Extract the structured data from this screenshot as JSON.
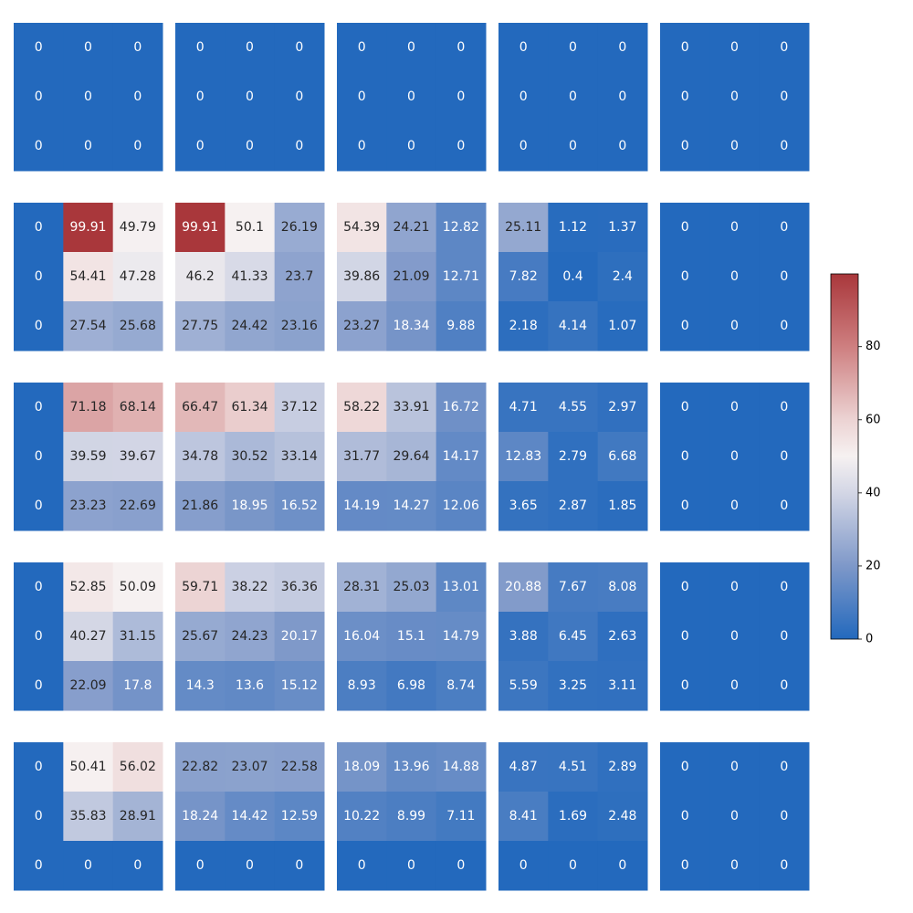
{
  "chart_data": {
    "type": "heatmap",
    "title": "",
    "xlabel": "",
    "ylabel": "",
    "grid_rows": 5,
    "grid_cols": 5,
    "colormap": {
      "name": "vlag",
      "vmin": 0,
      "vmax": 99.91,
      "stops": [
        {
          "v": 0,
          "color": "#2369bd"
        },
        {
          "v": 20,
          "color": "#7e98c9"
        },
        {
          "v": 40,
          "color": "#d3d6e5"
        },
        {
          "v": 50,
          "color": "#f6f1f1"
        },
        {
          "v": 60,
          "color": "#ecd3d3"
        },
        {
          "v": 80,
          "color": "#ce7f80"
        },
        {
          "v": 99.91,
          "color": "#a9373b"
        }
      ]
    },
    "colorbar": {
      "ticks": [
        0,
        20,
        40,
        60,
        80
      ],
      "tick_labels": [
        "0",
        "20",
        "40",
        "60",
        "80"
      ]
    },
    "panels": [
      [
        [
          [
            0,
            0,
            0
          ],
          [
            0,
            0,
            0
          ],
          [
            0,
            0,
            0
          ]
        ],
        [
          [
            0,
            0,
            0
          ],
          [
            0,
            0,
            0
          ],
          [
            0,
            0,
            0
          ]
        ],
        [
          [
            0,
            0,
            0
          ],
          [
            0,
            0,
            0
          ],
          [
            0,
            0,
            0
          ]
        ],
        [
          [
            0,
            0,
            0
          ],
          [
            0,
            0,
            0
          ],
          [
            0,
            0,
            0
          ]
        ],
        [
          [
            0,
            0,
            0
          ],
          [
            0,
            0,
            0
          ],
          [
            0,
            0,
            0
          ]
        ]
      ],
      [
        [
          [
            0,
            99.91,
            49.79
          ],
          [
            0,
            54.41,
            47.28
          ],
          [
            0,
            27.54,
            25.68
          ]
        ],
        [
          [
            99.91,
            50.1,
            26.19
          ],
          [
            46.2,
            41.33,
            23.7
          ],
          [
            27.75,
            24.42,
            23.16
          ]
        ],
        [
          [
            54.39,
            24.21,
            12.82
          ],
          [
            39.86,
            21.09,
            12.71
          ],
          [
            23.27,
            18.34,
            9.88
          ]
        ],
        [
          [
            25.11,
            1.12,
            1.37
          ],
          [
            7.82,
            0.4,
            2.4
          ],
          [
            2.18,
            4.14,
            1.07
          ]
        ],
        [
          [
            0,
            0,
            0
          ],
          [
            0,
            0,
            0
          ],
          [
            0,
            0,
            0
          ]
        ]
      ],
      [
        [
          [
            0,
            71.18,
            68.14
          ],
          [
            0,
            39.59,
            39.67
          ],
          [
            0,
            23.23,
            22.69
          ]
        ],
        [
          [
            66.47,
            61.34,
            37.12
          ],
          [
            34.78,
            30.52,
            33.14
          ],
          [
            21.86,
            18.95,
            16.52
          ]
        ],
        [
          [
            58.22,
            33.91,
            16.72
          ],
          [
            31.77,
            29.64,
            14.17
          ],
          [
            14.19,
            14.27,
            12.06
          ]
        ],
        [
          [
            4.71,
            4.55,
            2.97
          ],
          [
            12.83,
            2.79,
            6.68
          ],
          [
            3.65,
            2.87,
            1.85
          ]
        ],
        [
          [
            0,
            0,
            0
          ],
          [
            0,
            0,
            0
          ],
          [
            0,
            0,
            0
          ]
        ]
      ],
      [
        [
          [
            0,
            52.85,
            50.09
          ],
          [
            0,
            40.27,
            31.15
          ],
          [
            0,
            22.09,
            17.8
          ]
        ],
        [
          [
            59.71,
            38.22,
            36.36
          ],
          [
            25.67,
            24.23,
            20.17
          ],
          [
            14.3,
            13.6,
            15.12
          ]
        ],
        [
          [
            28.31,
            25.03,
            13.01
          ],
          [
            16.04,
            15.1,
            14.79
          ],
          [
            8.93,
            6.98,
            8.74
          ]
        ],
        [
          [
            20.88,
            7.67,
            8.08
          ],
          [
            3.88,
            6.45,
            2.63
          ],
          [
            5.59,
            3.25,
            3.11
          ]
        ],
        [
          [
            0,
            0,
            0
          ],
          [
            0,
            0,
            0
          ],
          [
            0,
            0,
            0
          ]
        ]
      ],
      [
        [
          [
            0,
            50.41,
            56.02
          ],
          [
            0,
            35.83,
            28.91
          ],
          [
            0,
            0,
            0
          ]
        ],
        [
          [
            22.82,
            23.07,
            22.58
          ],
          [
            18.24,
            14.42,
            12.59
          ],
          [
            0,
            0,
            0
          ]
        ],
        [
          [
            18.09,
            13.96,
            14.88
          ],
          [
            10.22,
            8.99,
            7.11
          ],
          [
            0,
            0,
            0
          ]
        ],
        [
          [
            4.87,
            4.51,
            2.89
          ],
          [
            8.41,
            1.69,
            2.48
          ],
          [
            0,
            0,
            0
          ]
        ],
        [
          [
            0,
            0,
            0
          ],
          [
            0,
            0,
            0
          ],
          [
            0,
            0,
            0
          ]
        ]
      ]
    ]
  }
}
